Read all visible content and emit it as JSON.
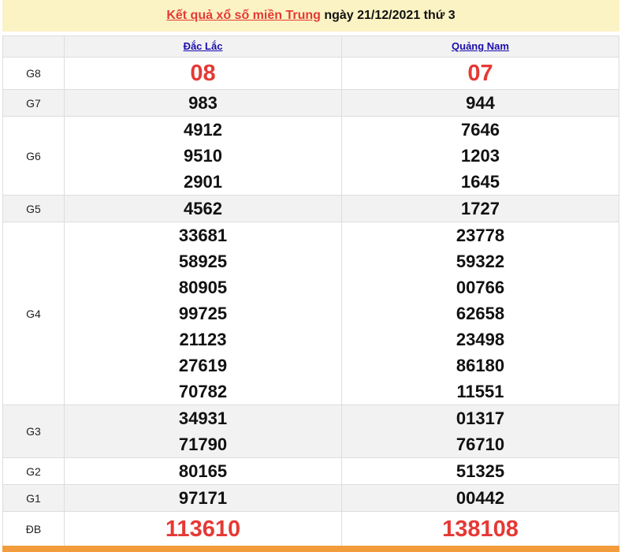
{
  "header": {
    "link": "Kết quả xổ số miền Trung",
    "rest": "ngày 21/12/2021 thứ 3"
  },
  "provinces": [
    "Đắc Lắc",
    "Quảng Nam"
  ],
  "rows": [
    {
      "label": "G8",
      "red": true,
      "values": [
        [
          "08"
        ],
        [
          "07"
        ]
      ]
    },
    {
      "label": "G7",
      "values": [
        [
          "983"
        ],
        [
          "944"
        ]
      ]
    },
    {
      "label": "G6",
      "values": [
        [
          "4912",
          "9510",
          "2901"
        ],
        [
          "7646",
          "1203",
          "1645"
        ]
      ]
    },
    {
      "label": "G5",
      "values": [
        [
          "4562"
        ],
        [
          "1727"
        ]
      ]
    },
    {
      "label": "G4",
      "values": [
        [
          "33681",
          "58925",
          "80905",
          "99725",
          "21123",
          "27619",
          "70782"
        ],
        [
          "23778",
          "59322",
          "00766",
          "62658",
          "23498",
          "86180",
          "11551"
        ]
      ]
    },
    {
      "label": "G3",
      "values": [
        [
          "34931",
          "71790"
        ],
        [
          "01317",
          "76710"
        ]
      ]
    },
    {
      "label": "G2",
      "values": [
        [
          "80165"
        ],
        [
          "51325"
        ]
      ]
    },
    {
      "label": "G1",
      "values": [
        [
          "97171"
        ],
        [
          "00442"
        ]
      ]
    },
    {
      "label": "ĐB",
      "red": true,
      "db": true,
      "values": [
        [
          "113610"
        ],
        [
          "138108"
        ]
      ]
    }
  ],
  "colors": {
    "accent": "#e53935",
    "header_bg": "#fcf3c4",
    "footer_bar": "#f39c3c"
  }
}
